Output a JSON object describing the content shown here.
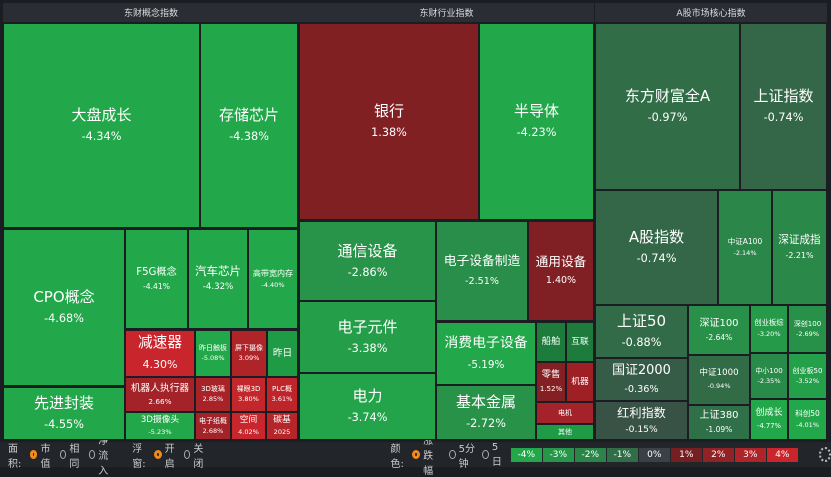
{
  "panels": [
    {
      "title": "东财概念指数",
      "tiles": [
        {
          "name": "大盘成长",
          "change": "-4.34%"
        },
        {
          "name": "存储芯片",
          "change": "-4.38%"
        },
        {
          "name": "CPO概念",
          "change": "-4.68%"
        },
        {
          "name": "先进封装",
          "change": "-4.55%"
        },
        {
          "name": "F5G概念",
          "change": "-4.41%"
        },
        {
          "name": "汽车芯片",
          "change": "-4.32%"
        },
        {
          "name": "高带宽内存",
          "change": "-4.40%"
        },
        {
          "name": "减速器",
          "change": "4.30%"
        },
        {
          "name": "机器人执行器",
          "change": "2.66%"
        },
        {
          "name": "3D摄像头",
          "change": "-5.23%"
        },
        {
          "name": "昨日触板",
          "change": "-5.08%"
        },
        {
          "name": "屏下摄像",
          "change": "3.09%"
        },
        {
          "name": "昨日",
          "color": "#1f9a45"
        },
        {
          "name": "3D玻璃",
          "change": "2.85%"
        },
        {
          "name": "裸眼3D",
          "change": "3.80%"
        },
        {
          "name": "PLC概",
          "change": "3.61%"
        },
        {
          "name": "电子纸概",
          "change": "2.68%"
        },
        {
          "name": "空间",
          "change": "4.02%"
        },
        {
          "name": "碳基",
          "change": "2025",
          "color": "#b5262b"
        }
      ]
    },
    {
      "title": "东财行业指数",
      "tiles": [
        {
          "name": "银行",
          "change": "1.38%"
        },
        {
          "name": "半导体",
          "change": "-4.23%"
        },
        {
          "name": "通信设备",
          "change": "-2.86%"
        },
        {
          "name": "电子设备制造",
          "change": "-2.51%"
        },
        {
          "name": "通用设备",
          "change": "1.40%"
        },
        {
          "name": "电子元件",
          "change": "-3.38%"
        },
        {
          "name": "电力",
          "change": "-3.74%"
        },
        {
          "name": "消费电子设备",
          "change": "-5.19%"
        },
        {
          "name": "基本金属",
          "change": "-2.72%"
        },
        {
          "name": "船舶",
          "color": "#1d7c3c"
        },
        {
          "name": "互联",
          "color": "#1d7c3c"
        },
        {
          "name": "零售",
          "change": "1.52%"
        },
        {
          "name": "机器",
          "color": "#9e1f24"
        },
        {
          "name": "电机",
          "color": "#a4232a"
        },
        {
          "name": "其他",
          "color": "#1f9a45"
        }
      ]
    },
    {
      "title": "A股市场核心指数",
      "tiles": [
        {
          "name": "东方财富全A",
          "change": "-0.97%"
        },
        {
          "name": "上证指数",
          "change": "-0.74%"
        },
        {
          "name": "A股指数",
          "change": "-0.74%"
        },
        {
          "name": "中证A100",
          "change": "-2.14%"
        },
        {
          "name": "深证成指",
          "change": "-2.21%"
        },
        {
          "name": "上证50",
          "change": "-0.88%"
        },
        {
          "name": "国证2000",
          "change": "-0.36%"
        },
        {
          "name": "红利指数",
          "change": "-0.15%"
        },
        {
          "name": "深证100",
          "change": "-2.64%"
        },
        {
          "name": "中证1000",
          "change": "-0.94%"
        },
        {
          "name": "上证380",
          "change": "-1.09%"
        },
        {
          "name": "创业板综",
          "change": "-3.20%"
        },
        {
          "name": "深创100",
          "change": "-2.69%"
        },
        {
          "name": "中小100",
          "change": "-2.35%"
        },
        {
          "name": "创业板50",
          "change": "-3.52%"
        },
        {
          "name": "创成长",
          "change": "-4.77%"
        },
        {
          "name": "科创50",
          "change": "-4.01%"
        }
      ]
    }
  ],
  "controls": [
    {
      "label": "面积:",
      "options": [
        "市值",
        "相同",
        "净流入"
      ],
      "selected": 0
    },
    {
      "label": "浮窗:",
      "options": [
        "开启",
        "关闭"
      ],
      "selected": 0
    },
    {
      "label": "颜色:",
      "options": [
        "涨跌幅",
        "5分钟",
        "5日"
      ],
      "selected": 0
    }
  ],
  "legend": [
    "-4%",
    "-3%",
    "-2%",
    "-1%",
    "0%",
    "1%",
    "2%",
    "3%",
    "4%"
  ]
}
